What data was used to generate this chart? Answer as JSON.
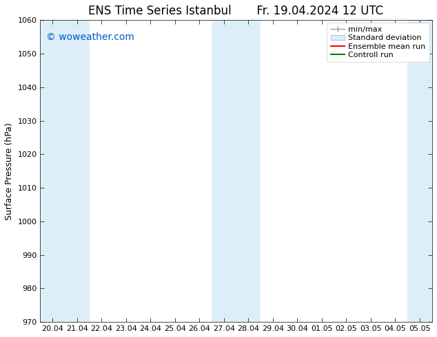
{
  "title_left": "ENS Time Series Istanbul",
  "title_right": "Fr. 19.04.2024 12 UTC",
  "ylabel": "Surface Pressure (hPa)",
  "ylim": [
    970,
    1060
  ],
  "yticks": [
    970,
    980,
    990,
    1000,
    1010,
    1020,
    1030,
    1040,
    1050,
    1060
  ],
  "x_tick_labels": [
    "20.04",
    "21.04",
    "22.04",
    "23.04",
    "24.04",
    "25.04",
    "26.04",
    "27.04",
    "28.04",
    "29.04",
    "30.04",
    "01.05",
    "02.05",
    "03.05",
    "04.05",
    "05.05"
  ],
  "shaded_indices": [
    0,
    1,
    7,
    8,
    15
  ],
  "shaded_color": "#ddeef8",
  "watermark_text": "© woweather.com",
  "watermark_color": "#0055cc",
  "legend_color_line1": "#ff0000",
  "legend_color_line2": "#008000",
  "bg_color": "#ffffff",
  "plot_bg_color": "#ffffff",
  "spine_color": "#000000",
  "font_size_title": 12,
  "font_size_axis": 9,
  "font_size_ticks": 8,
  "font_size_legend": 8,
  "font_size_watermark": 10
}
